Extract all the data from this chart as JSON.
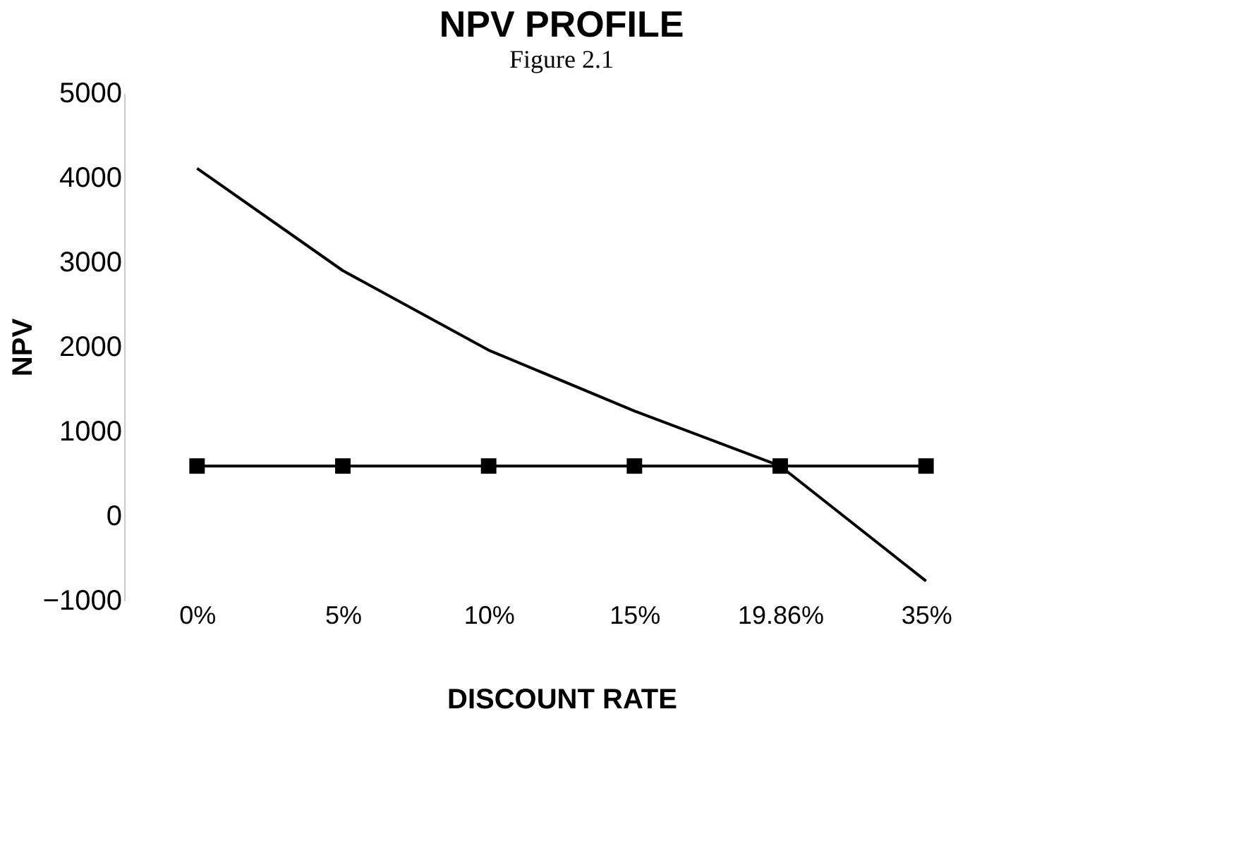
{
  "chart_data": {
    "type": "line",
    "title": "NPV PROFILE",
    "xlabel": "DISCOUNT RATE",
    "ylabel": "NPV",
    "categories": [
      "0%",
      "5%",
      "10%",
      "15%",
      "19.86%",
      "35%"
    ],
    "series": [
      {
        "color": "#000000",
        "values": [
          4110,
          2900,
          1960,
          1240,
          590,
          -770
        ],
        "marker": "none"
      },
      {
        "color": "#000000",
        "values": [
          590,
          590,
          590,
          590,
          590,
          590
        ],
        "marker": "square"
      }
    ],
    "ylim": [
      -1000,
      5000
    ],
    "yticks": [
      -1000,
      0,
      1000,
      2000,
      3000,
      4000,
      5000
    ],
    "grid": false,
    "line_style": "solid",
    "annotations": [
      "Figure 2.1"
    ]
  }
}
